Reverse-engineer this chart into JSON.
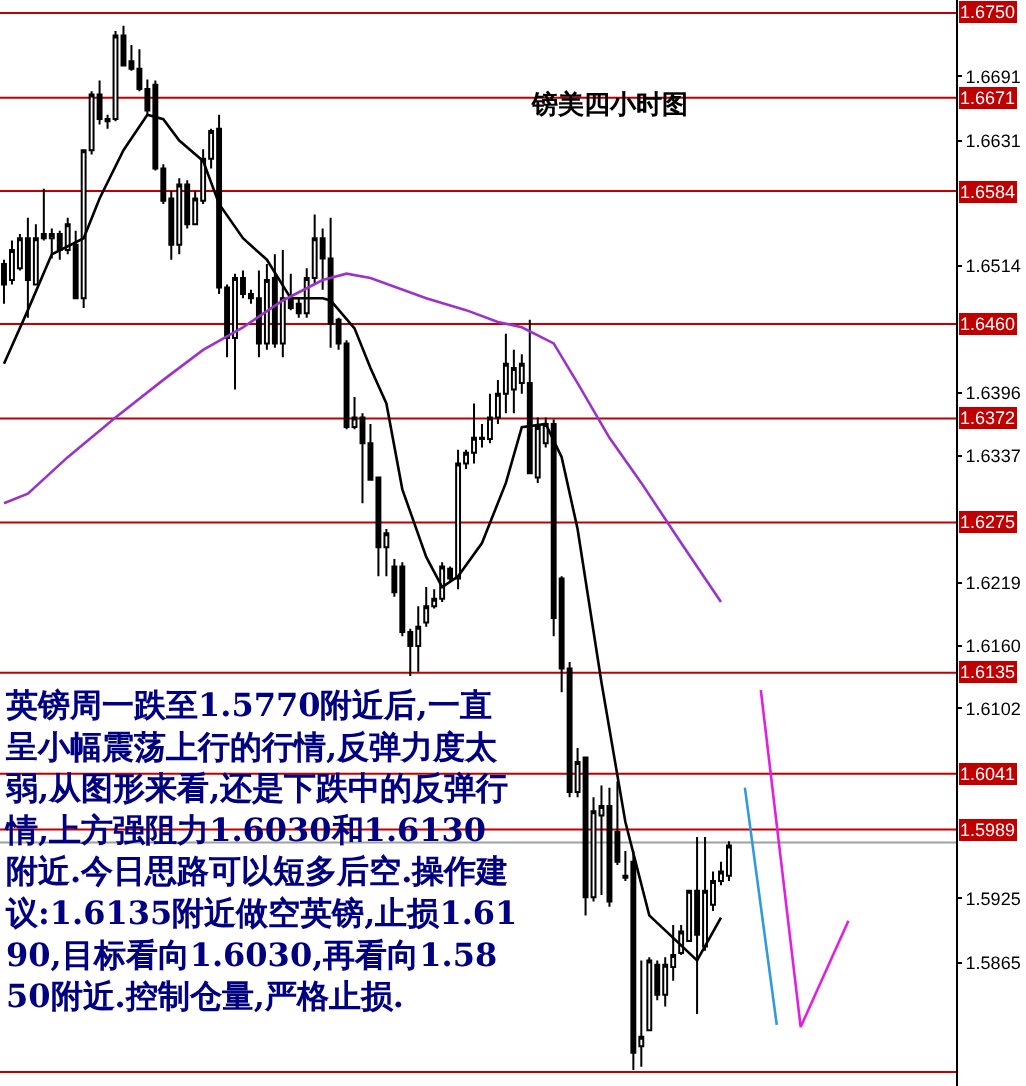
{
  "chart_data": {
    "type": "candlestick",
    "title": "镑美四小时图",
    "categories": [
      null,
      null,
      null,
      null,
      null,
      null,
      null,
      null,
      null,
      null,
      null,
      null,
      null,
      null,
      null,
      null,
      null,
      null,
      null,
      null,
      null,
      null,
      null,
      null,
      null,
      null,
      null,
      null,
      null,
      null,
      null,
      null,
      null,
      null,
      null,
      null,
      null,
      null,
      null,
      null,
      null,
      null,
      null,
      null,
      null,
      null,
      null,
      null,
      null,
      null,
      null,
      null,
      null,
      null,
      null,
      null,
      null,
      null,
      null,
      null,
      null,
      null,
      null,
      null,
      null,
      null,
      null,
      null,
      null,
      null,
      null,
      null,
      null,
      null,
      null,
      null,
      null,
      null,
      null,
      null,
      null,
      null,
      null,
      null,
      null,
      null,
      null,
      null,
      null,
      null,
      null,
      null,
      null,
      null,
      null,
      null,
      null,
      null,
      null,
      null,
      null,
      null,
      null,
      null,
      null,
      null,
      null,
      null,
      null,
      null,
      null,
      null,
      null,
      null,
      null,
      null,
      null,
      null,
      null,
      null
    ],
    "ohlc": [
      [
        1.6516,
        1.652,
        1.6479,
        1.6497
      ],
      [
        1.6501,
        1.6538,
        1.6497,
        1.6529
      ],
      [
        1.6512,
        1.6544,
        1.651,
        1.654
      ],
      [
        1.654,
        1.6559,
        1.6466,
        1.6501
      ],
      [
        1.6497,
        1.6553,
        1.6497,
        1.654
      ],
      [
        1.6544,
        1.6586,
        1.6538,
        1.654
      ],
      [
        1.654,
        1.6549,
        1.6521,
        1.6544
      ],
      [
        1.6544,
        1.6547,
        1.652,
        1.6529
      ],
      [
        1.6529,
        1.6559,
        1.6525,
        1.6553
      ],
      [
        1.6534,
        1.6547,
        1.6484,
        1.6484
      ],
      [
        1.6484,
        1.6623,
        1.6475,
        1.6622
      ],
      [
        1.6622,
        1.6677,
        1.6618,
        1.6674
      ],
      [
        1.6674,
        1.6687,
        1.6646,
        1.6651
      ],
      [
        1.6651,
        1.6655,
        1.6642,
        1.6649
      ],
      [
        1.6651,
        1.6733,
        1.6649,
        1.6729
      ],
      [
        1.6729,
        1.6738,
        1.6701,
        1.6701
      ],
      [
        1.6705,
        1.672,
        1.6696,
        1.6698
      ],
      [
        1.6698,
        1.6716,
        1.6677,
        1.6679
      ],
      [
        1.6679,
        1.6688,
        1.6655,
        1.6659
      ],
      [
        1.6683,
        1.6687,
        1.6603,
        1.6605
      ],
      [
        1.6605,
        1.6609,
        1.6572,
        1.6575
      ],
      [
        1.6577,
        1.6584,
        1.652,
        1.6534
      ],
      [
        1.6534,
        1.6596,
        1.6525,
        1.659
      ],
      [
        1.659,
        1.6594,
        1.6549,
        1.6553
      ],
      [
        1.6553,
        1.6584,
        1.6553,
        1.6577
      ],
      [
        1.6575,
        1.6623,
        1.6572,
        1.6614
      ],
      [
        1.6614,
        1.6642,
        1.6605,
        1.664
      ],
      [
        1.6642,
        1.6655,
        1.6488,
        1.6494
      ],
      [
        1.6494,
        1.6497,
        1.6429,
        1.6447
      ],
      [
        1.6447,
        1.6507,
        1.6399,
        1.6503
      ],
      [
        1.6503,
        1.651,
        1.6484,
        1.6488
      ],
      [
        1.6488,
        1.6492,
        1.6479,
        1.6484
      ],
      [
        1.6484,
        1.651,
        1.6429,
        1.6442
      ],
      [
        1.6442,
        1.6516,
        1.6436,
        1.6501
      ],
      [
        1.6503,
        1.6525,
        1.6438,
        1.6442
      ],
      [
        1.6442,
        1.6529,
        1.6429,
        1.6484
      ],
      [
        1.6484,
        1.6507,
        1.6473,
        1.6475
      ],
      [
        1.6479,
        1.6484,
        1.6466,
        1.647
      ],
      [
        1.647,
        1.6512,
        1.6466,
        1.6503
      ],
      [
        1.6503,
        1.6562,
        1.6497,
        1.654
      ],
      [
        1.654,
        1.6549,
        1.6492,
        1.6521
      ],
      [
        1.6521,
        1.6559,
        1.6438,
        1.646
      ],
      [
        1.6464,
        1.6466,
        1.6436,
        1.6442
      ],
      [
        1.6442,
        1.6445,
        1.6362,
        1.6364
      ],
      [
        1.6364,
        1.6392,
        1.6362,
        1.6373
      ],
      [
        1.6373,
        1.6377,
        1.6293,
        1.6349
      ],
      [
        1.6349,
        1.6367,
        1.6315,
        1.6315
      ],
      [
        1.6317,
        1.6317,
        1.6225,
        1.6252
      ],
      [
        1.6252,
        1.6269,
        1.6225,
        1.6265
      ],
      [
        1.6234,
        1.6241,
        1.6206,
        1.621
      ],
      [
        1.6234,
        1.6238,
        1.6169,
        1.6173
      ],
      [
        1.6173,
        1.6176,
        1.6132,
        1.616
      ],
      [
        1.616,
        1.6197,
        1.6136,
        1.6178
      ],
      [
        1.6182,
        1.6215,
        1.6178,
        1.6197
      ],
      [
        1.6197,
        1.6213,
        1.6195,
        1.6204
      ],
      [
        1.6204,
        1.6238,
        1.6201,
        1.6234
      ],
      [
        1.6232,
        1.6234,
        1.6219,
        1.6223
      ],
      [
        1.6223,
        1.6343,
        1.6213,
        1.633
      ],
      [
        1.633,
        1.6343,
        1.6325,
        1.634
      ],
      [
        1.634,
        1.6386,
        1.633,
        1.6354
      ],
      [
        1.6353,
        1.6367,
        1.6345,
        1.6354
      ],
      [
        1.6353,
        1.6395,
        1.6349,
        1.6373
      ],
      [
        1.6373,
        1.6408,
        1.6367,
        1.6395
      ],
      [
        1.6395,
        1.6451,
        1.6377,
        1.6423
      ],
      [
        1.6399,
        1.6436,
        1.6377,
        1.6419
      ],
      [
        1.6405,
        1.6432,
        1.6395,
        1.6423
      ],
      [
        1.6405,
        1.6464,
        1.6321,
        1.6321
      ],
      [
        1.6317,
        1.6373,
        1.6312,
        1.6364
      ],
      [
        1.6349,
        1.6373,
        1.6345,
        1.6367
      ],
      [
        1.6367,
        1.6371,
        1.6169,
        1.6186
      ],
      [
        1.6223,
        1.6225,
        1.6117,
        1.6139
      ],
      [
        1.6139,
        1.6145,
        1.6019,
        1.6024
      ],
      [
        1.6024,
        1.6065,
        1.6019,
        1.6052
      ],
      [
        1.6056,
        1.6056,
        1.5909,
        1.5926
      ],
      [
        1.5926,
        1.6019,
        1.5922,
        1.6006
      ],
      [
        1.6002,
        1.603,
        1.5928,
        1.6011
      ],
      [
        1.6011,
        1.6028,
        1.5917,
        1.5922
      ],
      [
        1.5987,
        1.6034,
        1.5956,
        1.5959
      ],
      [
        1.5946,
        1.5969,
        1.5941,
        1.5944
      ],
      [
        1.5959,
        1.5969,
        1.5765,
        1.5781
      ],
      [
        1.5787,
        1.5867,
        1.5768,
        1.5796
      ],
      [
        1.5802,
        1.587,
        1.5802,
        1.5867
      ],
      [
        1.5863,
        1.5867,
        1.583,
        1.5835
      ],
      [
        1.5835,
        1.587,
        1.5824,
        1.5863
      ],
      [
        1.5861,
        1.59,
        1.5848,
        1.5872
      ],
      [
        1.5874,
        1.59,
        1.5872,
        1.5894
      ],
      [
        1.5885,
        1.5932,
        1.5885,
        1.5932
      ],
      [
        1.5932,
        1.5982,
        1.5817,
        1.5891
      ],
      [
        1.588,
        1.5982,
        1.5876,
        1.5932
      ],
      [
        1.5919,
        1.595,
        1.5913,
        1.5941
      ],
      [
        1.5941,
        1.5959,
        1.5937,
        1.595
      ],
      [
        1.5946,
        1.5978,
        1.5941,
        1.5974
      ],
      null,
      null,
      null,
      null,
      null,
      null,
      null,
      null,
      null,
      null,
      null,
      null,
      null,
      null,
      null,
      null,
      null,
      null,
      null,
      null,
      null,
      null,
      null,
      null,
      null,
      null,
      null,
      null
    ],
    "series": [
      {
        "type": "line",
        "color": "#000000",
        "values": [
          1.6423,
          null,
          null,
          1.6473,
          null,
          null,
          1.6525,
          null,
          null,
          null,
          1.654,
          null,
          1.6577,
          null,
          null,
          1.6622,
          null,
          null,
          1.6655,
          null,
          1.6651,
          null,
          1.6631,
          null,
          null,
          1.6612,
          null,
          1.6572,
          null,
          null,
          1.654,
          null,
          null,
          1.652,
          null,
          null,
          1.6484,
          null,
          null,
          null,
          1.6484,
          1.6482,
          null,
          null,
          1.6456,
          null,
          1.6419,
          null,
          1.6386,
          null,
          1.6306,
          null,
          null,
          1.6243,
          null,
          1.6215,
          null,
          1.6225,
          null,
          null,
          1.6256,
          null,
          null,
          1.6312,
          null,
          1.6364,
          null,
          null,
          1.6367,
          null,
          1.6336,
          null,
          1.6269,
          null,
          null,
          1.6126,
          null,
          null,
          1.5996,
          null,
          null,
          1.5909,
          null,
          null,
          null,
          null,
          null,
          1.5867,
          null,
          null,
          1.5907,
          null,
          null,
          null,
          null,
          null,
          null,
          null,
          null,
          null,
          null,
          null,
          null,
          null,
          null,
          null,
          null,
          null,
          null,
          null,
          null,
          null,
          null,
          null,
          null,
          null,
          null,
          null,
          null,
          null
        ]
      },
      {
        "type": "line",
        "color": "#9933cc",
        "values": [
          1.6293,
          null,
          null,
          1.6302,
          null,
          null,
          null,
          null,
          1.6336,
          null,
          null,
          null,
          null,
          null,
          1.6373,
          null,
          null,
          null,
          null,
          null,
          1.6408,
          null,
          null,
          null,
          null,
          1.6436,
          null,
          null,
          null,
          null,
          1.6457,
          null,
          null,
          null,
          null,
          1.6482,
          null,
          null,
          null,
          null,
          1.6501,
          null,
          null,
          1.6507,
          null,
          null,
          1.6503,
          null,
          null,
          null,
          null,
          null,
          null,
          1.6484,
          null,
          null,
          null,
          null,
          1.6473,
          null,
          null,
          null,
          1.6462,
          null,
          null,
          1.6457,
          null,
          null,
          null,
          1.6442,
          null,
          null,
          1.6405,
          null,
          null,
          null,
          1.6354,
          null,
          null,
          null,
          1.6312,
          null,
          null,
          null,
          null,
          1.6256,
          null,
          null,
          null,
          null,
          1.6201,
          null,
          null,
          null,
          null,
          null,
          null,
          null,
          null,
          null,
          null,
          null,
          null,
          null,
          null,
          null,
          null,
          null,
          null,
          null,
          null,
          null,
          null,
          null,
          null,
          null,
          null,
          null,
          null,
          null
        ]
      },
      {
        "type": "line",
        "color": "#3399dd",
        "values": [
          null,
          null,
          null,
          null,
          null,
          null,
          null,
          null,
          null,
          null,
          null,
          null,
          null,
          null,
          null,
          null,
          null,
          null,
          null,
          null,
          null,
          null,
          null,
          null,
          null,
          null,
          null,
          null,
          null,
          null,
          null,
          null,
          null,
          null,
          null,
          null,
          null,
          null,
          null,
          null,
          null,
          null,
          null,
          null,
          null,
          null,
          null,
          null,
          null,
          null,
          null,
          null,
          null,
          null,
          null,
          null,
          null,
          null,
          null,
          null,
          null,
          null,
          null,
          null,
          null,
          null,
          null,
          null,
          null,
          null,
          null,
          null,
          null,
          null,
          null,
          null,
          null,
          null,
          null,
          null,
          null,
          null,
          null,
          null,
          null,
          null,
          null,
          null,
          null,
          null,
          null,
          null,
          null,
          1.6028,
          null,
          null,
          null,
          1.5807,
          null,
          null,
          null,
          null,
          null,
          null,
          null,
          null,
          null,
          null,
          null,
          null,
          null,
          null,
          null,
          null,
          null,
          null,
          null,
          null,
          null,
          null
        ]
      },
      {
        "type": "line",
        "color": "#e020e0",
        "values": [
          null,
          null,
          null,
          null,
          null,
          null,
          null,
          null,
          null,
          null,
          null,
          null,
          null,
          null,
          null,
          null,
          null,
          null,
          null,
          null,
          null,
          null,
          null,
          null,
          null,
          null,
          null,
          null,
          null,
          null,
          null,
          null,
          null,
          null,
          null,
          null,
          null,
          null,
          null,
          null,
          null,
          null,
          null,
          null,
          null,
          null,
          null,
          null,
          null,
          null,
          null,
          null,
          null,
          null,
          null,
          null,
          null,
          null,
          null,
          null,
          null,
          null,
          null,
          null,
          null,
          null,
          null,
          null,
          null,
          null,
          null,
          null,
          null,
          null,
          null,
          null,
          null,
          null,
          null,
          null,
          null,
          null,
          null,
          null,
          null,
          null,
          null,
          null,
          null,
          null,
          null,
          null,
          null,
          null,
          null,
          1.6119,
          null,
          null,
          null,
          null,
          1.5805,
          null,
          null,
          null,
          null,
          null,
          1.5904,
          null,
          null,
          null,
          null,
          null,
          null,
          null,
          null,
          null,
          null,
          null,
          null,
          null
        ]
      }
    ],
    "ylim": [
      1.575,
      1.6762
    ],
    "yticks": [
      1.6691,
      1.6631,
      1.6514,
      1.6396,
      1.6337,
      1.6219,
      {
        "value": 1.616,
        "label": "1.6160"
      },
      1.6102,
      1.5925,
      1.5865
    ],
    "tick_labels": "y",
    "ref_lines": [
      {
        "axis": "y",
        "value": 1.675,
        "label": "1.6750",
        "color": "#c00000"
      },
      {
        "axis": "y",
        "value": 1.6671,
        "label": "1.6671",
        "color": "#c00000"
      },
      {
        "axis": "y",
        "value": 1.6584,
        "label": "1.6584",
        "color": "#c00000"
      },
      {
        "axis": "y",
        "value": 1.646,
        "label": "1.6460",
        "color": "#c00000"
      },
      {
        "axis": "y",
        "value": 1.6372,
        "label": "1.6372",
        "color": "#c00000"
      },
      {
        "axis": "y",
        "value": 1.6275,
        "label": "1.6275",
        "color": "#c00000"
      },
      {
        "axis": "y",
        "value": 1.6135,
        "label": "1.6135",
        "color": "#c00000"
      },
      {
        "axis": "y",
        "value": 1.6041,
        "label": "1.6041",
        "color": "#c00000"
      },
      {
        "axis": "y",
        "value": 1.5989,
        "label": "1.5989",
        "color": "#c00000"
      },
      {
        "axis": "y",
        "value": 1.5977,
        "label": null,
        "color": "#a0a0a0"
      },
      {
        "axis": "y",
        "value": 1.5763,
        "label": null,
        "color": "#c00000"
      }
    ],
    "annotations": [
      "英镑周一跌至1.5770附近后,一直呈小幅震荡上行的行情,反弹力度太弱,从图形来看,还是下跌中的反弹行情,上方强阻力1.6030和1.6130附近.今日思路可以短多后空.操作建议:1.6135附近做空英镑,止损1.6190,目标看向1.6030,再看向1.5850附近.控制仓量,严格止损."
    ]
  }
}
